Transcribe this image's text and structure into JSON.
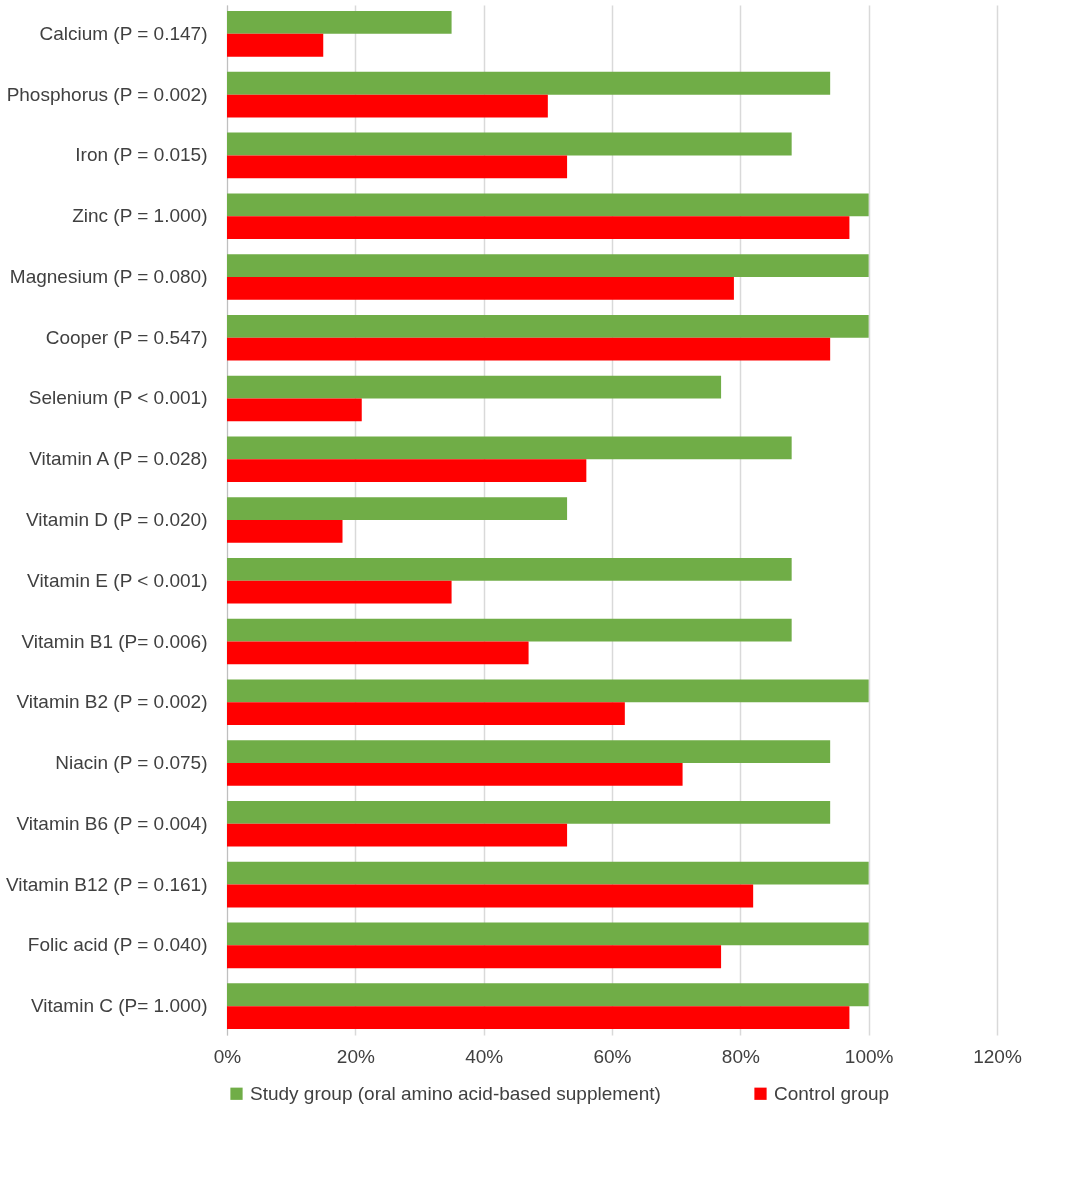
{
  "chart_data": {
    "type": "bar",
    "orientation": "horizontal",
    "categories": [
      "Calcium (P = 0.147)",
      "Phosphorus (P = 0.002)",
      "Iron (P = 0.015)",
      "Zinc (P = 1.000)",
      "Magnesium (P = 0.080)",
      "Cooper (P = 0.547)",
      "Selenium (P < 0.001)",
      "Vitamin A (P = 0.028)",
      "Vitamin D (P = 0.020)",
      "Vitamin E (P < 0.001)",
      "Vitamin B1 (P= 0.006)",
      "Vitamin B2 (P = 0.002)",
      "Niacin (P = 0.075)",
      "Vitamin B6 (P = 0.004)",
      "Vitamin B12 (P = 0.161)",
      "Folic acid (P = 0.040)",
      "Vitamin C (P= 1.000)"
    ],
    "series": [
      {
        "name": "Study group (oral amino acid-based supplement)",
        "color": "#70ad47",
        "values": [
          35,
          94,
          88,
          100,
          100,
          100,
          77,
          88,
          53,
          88,
          88,
          100,
          94,
          94,
          100,
          100,
          100
        ]
      },
      {
        "name": "Control group",
        "color": "#ff0000",
        "values": [
          15,
          50,
          53,
          97,
          79,
          94,
          21,
          56,
          18,
          35,
          47,
          62,
          71,
          53,
          82,
          77,
          97
        ]
      }
    ],
    "xlim": [
      0,
      120
    ],
    "xticks": [
      {
        "value": 0,
        "label": "0%"
      },
      {
        "value": 20,
        "label": "20%"
      },
      {
        "value": 40,
        "label": "40%"
      },
      {
        "value": 60,
        "label": "60%"
      },
      {
        "value": 80,
        "label": "80%"
      },
      {
        "value": 100,
        "label": "100%"
      },
      {
        "value": 120,
        "label": "120%"
      }
    ],
    "grid": "x",
    "legend": "bottom"
  }
}
